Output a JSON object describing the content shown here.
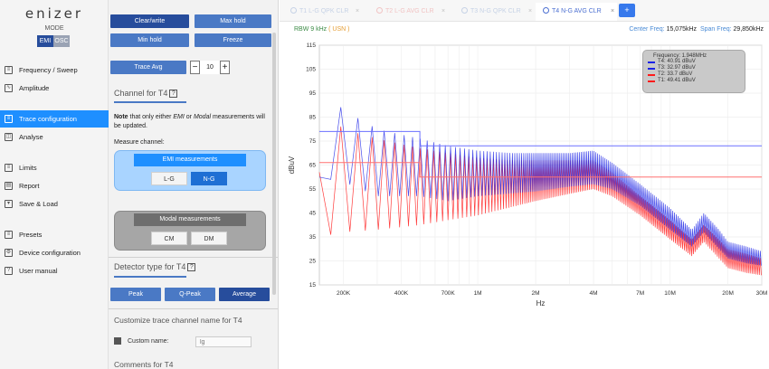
{
  "app": {
    "logo": "enizer",
    "mode_label": "MODE",
    "modes": [
      "EMI",
      "OSC"
    ],
    "active_mode": "EMI"
  },
  "sidebar": {
    "items": [
      {
        "label": "Frequency / Sweep",
        "icon": "sweep-icon"
      },
      {
        "label": "Amplitude",
        "icon": "amplitude-icon"
      },
      {
        "label": "Trace configuration",
        "icon": "trace-icon",
        "active": true
      },
      {
        "label": "Analyse",
        "icon": "analyse-icon"
      },
      {
        "label": "Limits",
        "icon": "limits-icon"
      },
      {
        "label": "Report",
        "icon": "report-icon"
      },
      {
        "label": "Save & Load",
        "icon": "save-icon"
      },
      {
        "label": "Presets",
        "icon": "presets-icon"
      },
      {
        "label": "Device configuration",
        "icon": "device-icon"
      },
      {
        "label": "User manual",
        "icon": "help-icon"
      }
    ]
  },
  "panel": {
    "clear_write": "Clear/write",
    "max_hold": "Max hold",
    "min_hold": "Min hold",
    "freeze": "Freeze",
    "trace_avg": "Trace Avg",
    "avg_value": "10",
    "minus": "−",
    "plus": "+",
    "channel_title": "Channel for T4",
    "note_bold": "Note",
    "note_pre": " that only either ",
    "note_emi": "EMI",
    "note_mid": " or ",
    "note_modal": "Modal",
    "note_post": " measurements will be updated.",
    "measure_channel": "Measure channel:",
    "emi_header": "EMI measurements",
    "lg": "L-G",
    "ng": "N-G",
    "modal_header": "Modal measurements",
    "cm": "CM",
    "dm": "DM",
    "detector_title": "Detector type for T4",
    "peak": "Peak",
    "qpeak": "Q-Peak",
    "average": "Average",
    "customize_title": "Customize trace channel name for T4",
    "custom_name_label": "Custom name:",
    "custom_name_placeholder": "lg",
    "comments_title": "Comments for T4",
    "help_glyph": "?"
  },
  "tabs": [
    {
      "label": "T1 L-G QPK CLR"
    },
    {
      "label": "T2 L-G AVG CLR"
    },
    {
      "label": "T3 N-G QPK CLR"
    },
    {
      "label": "T4 N-G AVG CLR",
      "active": true
    }
  ],
  "tab_close": "×",
  "tab_add": "+",
  "info": {
    "rbw": "RBW 9 kHz",
    "usn": "( USN )",
    "center_key": "Center Freq:",
    "center_val": "15,075kHz",
    "span_key": "Span Freq:",
    "span_val": "29,850kHz"
  },
  "colors": {
    "accent": "#1e8fff",
    "button": "#4a79c5",
    "button_dark": "#274d9c",
    "trace_red": "#ff1a1a",
    "trace_blue": "#1a22e6",
    "limit_red": "#ff7070",
    "limit_blue": "#6b70ff"
  },
  "chart_data": {
    "type": "line",
    "xlabel": "Hz",
    "ylabel": "dBuV",
    "x_scale": "log",
    "xlim": [
      150000,
      30000000
    ],
    "ylim": [
      15,
      115
    ],
    "yticks": [
      15,
      25,
      35,
      45,
      55,
      65,
      75,
      85,
      95,
      105,
      115
    ],
    "xticks": [
      {
        "value": 200000,
        "label": "200K"
      },
      {
        "value": 400000,
        "label": "400K"
      },
      {
        "value": 700000,
        "label": "700K"
      },
      {
        "value": 1000000,
        "label": "1M"
      },
      {
        "value": 2000000,
        "label": "2M"
      },
      {
        "value": 4000000,
        "label": "4M"
      },
      {
        "value": 7000000,
        "label": "7M"
      },
      {
        "value": 10000000,
        "label": "10M"
      },
      {
        "value": 20000000,
        "label": "20M"
      },
      {
        "value": 30000000,
        "label": "30M"
      }
    ],
    "grid": true,
    "limits": [
      {
        "color": "#ff7070",
        "points": [
          [
            150000,
            66
          ],
          [
            500000,
            66
          ],
          [
            500000,
            60
          ],
          [
            30000000,
            60
          ]
        ]
      },
      {
        "color": "#6b70ff",
        "points": [
          [
            150000,
            79
          ],
          [
            500000,
            79
          ],
          [
            500000,
            73
          ],
          [
            30000000,
            73
          ]
        ]
      }
    ],
    "series": [
      {
        "color": "#ff1a1a",
        "upper": [
          [
            150000,
            62
          ],
          [
            160000,
            88
          ],
          [
            200000,
            80
          ],
          [
            300000,
            76
          ],
          [
            500000,
            72
          ],
          [
            700000,
            70
          ],
          [
            1000000,
            68
          ],
          [
            1500000,
            67
          ],
          [
            2000000,
            67
          ],
          [
            3000000,
            67
          ],
          [
            4000000,
            67
          ],
          [
            5000000,
            62
          ],
          [
            7000000,
            52
          ],
          [
            10000000,
            42
          ],
          [
            13000000,
            34
          ],
          [
            15000000,
            40
          ],
          [
            18000000,
            34
          ],
          [
            20000000,
            30
          ],
          [
            25000000,
            28
          ],
          [
            30000000,
            26
          ]
        ],
        "lower": [
          [
            150000,
            35
          ],
          [
            200000,
            37
          ],
          [
            300000,
            38
          ],
          [
            500000,
            40
          ],
          [
            700000,
            42
          ],
          [
            1000000,
            44
          ],
          [
            2000000,
            50
          ],
          [
            3000000,
            53
          ],
          [
            4000000,
            55
          ],
          [
            5000000,
            52
          ],
          [
            7000000,
            44
          ],
          [
            10000000,
            34
          ],
          [
            13000000,
            27
          ],
          [
            15000000,
            33
          ],
          [
            18000000,
            26
          ],
          [
            20000000,
            22
          ],
          [
            25000000,
            20
          ],
          [
            30000000,
            19
          ]
        ],
        "period": 22000
      },
      {
        "color": "#1a22e6",
        "upper": [
          [
            150000,
            60
          ],
          [
            170000,
            94
          ],
          [
            200000,
            88
          ],
          [
            300000,
            80
          ],
          [
            500000,
            76
          ],
          [
            700000,
            73
          ],
          [
            1000000,
            71
          ],
          [
            1500000,
            70
          ],
          [
            2000000,
            70
          ],
          [
            3000000,
            70
          ],
          [
            4000000,
            71
          ],
          [
            5000000,
            66
          ],
          [
            7000000,
            57
          ],
          [
            10000000,
            47
          ],
          [
            13000000,
            38
          ],
          [
            15000000,
            45
          ],
          [
            18000000,
            38
          ],
          [
            20000000,
            33
          ],
          [
            25000000,
            31
          ],
          [
            30000000,
            29
          ]
        ],
        "lower": [
          [
            150000,
            60
          ],
          [
            200000,
            58
          ],
          [
            300000,
            52
          ],
          [
            500000,
            52
          ],
          [
            700000,
            50
          ],
          [
            1000000,
            52
          ],
          [
            2000000,
            54
          ],
          [
            3000000,
            56
          ],
          [
            4000000,
            57
          ],
          [
            5000000,
            55
          ],
          [
            7000000,
            48
          ],
          [
            10000000,
            38
          ],
          [
            13000000,
            31
          ],
          [
            15000000,
            37
          ],
          [
            18000000,
            30
          ],
          [
            20000000,
            26
          ],
          [
            25000000,
            24
          ],
          [
            30000000,
            23
          ]
        ],
        "period": 22000
      }
    ]
  },
  "legend": {
    "title": "Frequency: 1.948MHz",
    "entries": [
      {
        "label": "T4: 40.91 dBuV",
        "color": "#1a22e6"
      },
      {
        "label": "T3: 32.97 dBuV",
        "color": "#1a22e6"
      },
      {
        "label": "T2: 33.7 dBuV",
        "color": "#ff1a1a"
      },
      {
        "label": "T1: 49.41 dBuV",
        "color": "#ff1a1a"
      }
    ]
  }
}
